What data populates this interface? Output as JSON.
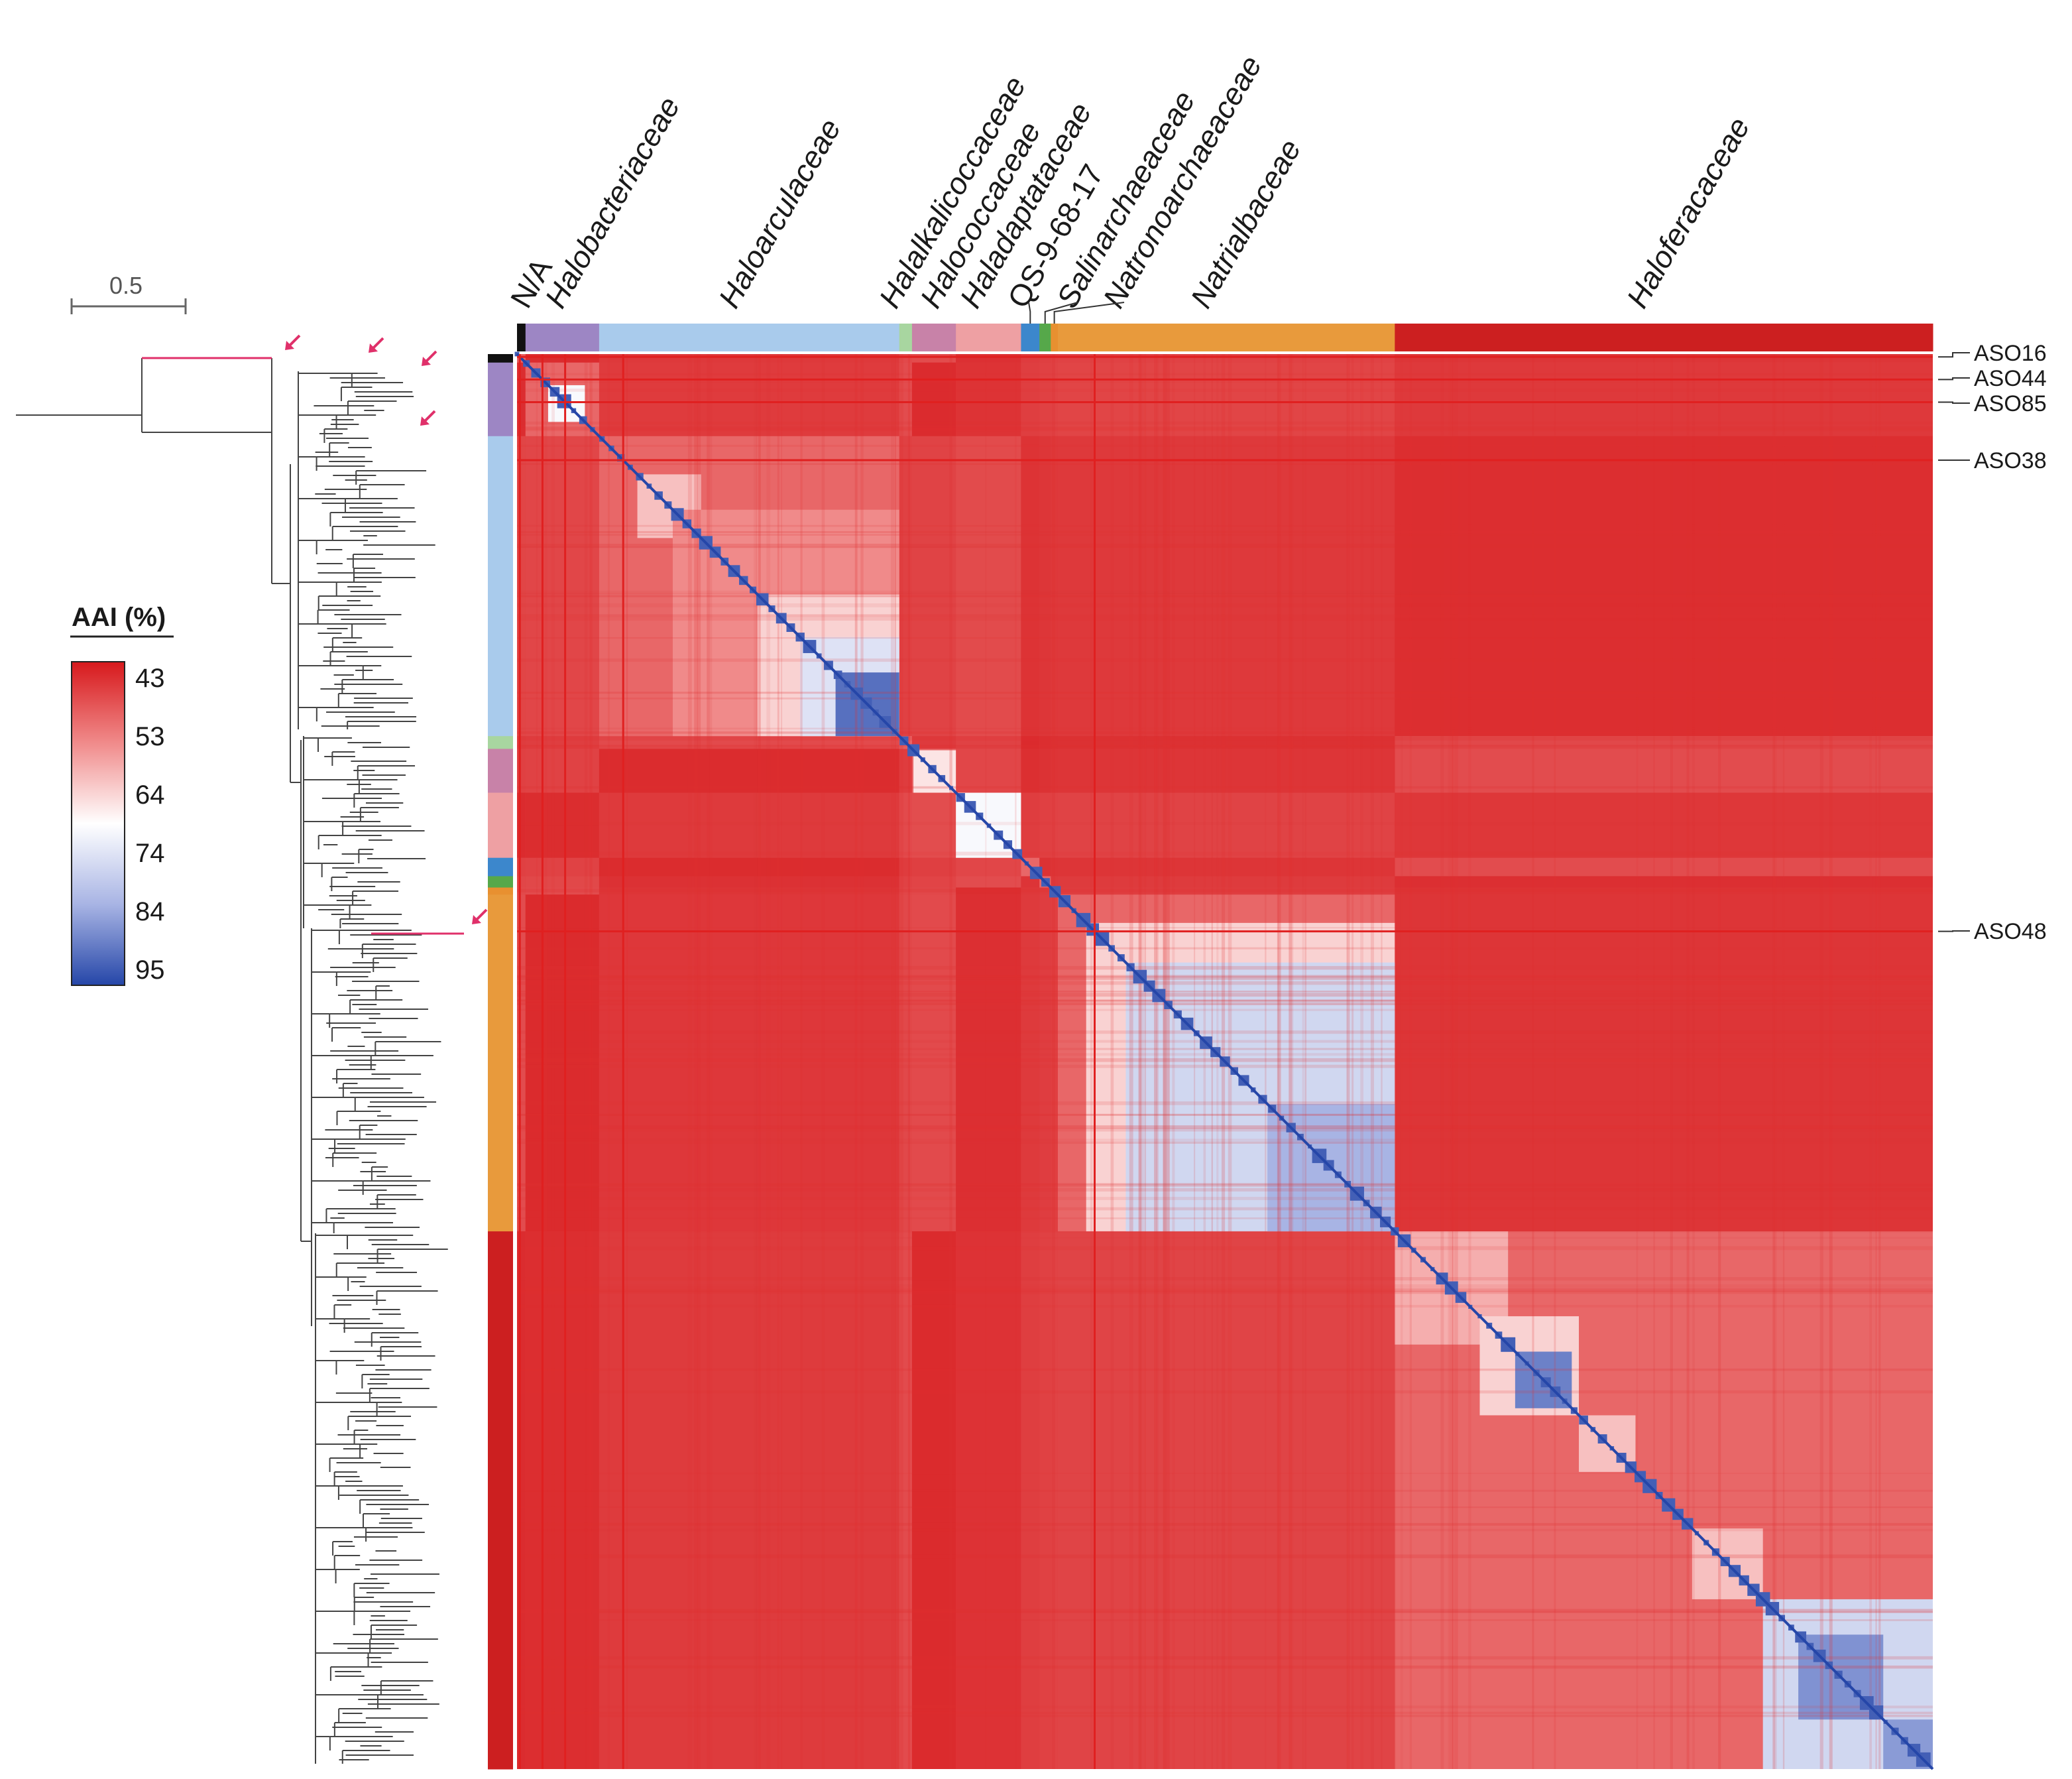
{
  "chart_data": {
    "type": "heatmap",
    "title": "",
    "families": [
      {
        "name": "N/A",
        "color": "#111111",
        "start": 0,
        "end": 0.006
      },
      {
        "name": "Halobacteriaceae",
        "color": "#9d86c4",
        "start": 0.006,
        "end": 0.058
      },
      {
        "name": "Haloarculaceae",
        "color": "#a9cbec",
        "start": 0.058,
        "end": 0.27
      },
      {
        "name": "Halalkalicoccaceae",
        "color": "#a8d6a0",
        "start": 0.27,
        "end": 0.279
      },
      {
        "name": "Halococcaceae",
        "color": "#c882a8",
        "start": 0.279,
        "end": 0.31
      },
      {
        "name": "Haladaptataceae",
        "color": "#eea0a3",
        "start": 0.31,
        "end": 0.356
      },
      {
        "name": "QS-9-68-17",
        "color": "#3c87cc",
        "start": 0.356,
        "end": 0.369
      },
      {
        "name": "Salinarchaeaceae",
        "color": "#56a84a",
        "start": 0.369,
        "end": 0.377
      },
      {
        "name": "Natronoarchaeaceae",
        "color": "#e89030",
        "start": 0.377,
        "end": 0.382
      },
      {
        "name": "Natrialbaceae",
        "color": "#e89a3c",
        "start": 0.382,
        "end": 0.62
      },
      {
        "name": "Haloferacaceae",
        "color": "#cc1f20",
        "start": 0.62,
        "end": 1.0
      }
    ],
    "highlighted_genomes": [
      {
        "name": "ASO16",
        "pos": 0.002
      },
      {
        "name": "ASO44",
        "pos": 0.018
      },
      {
        "name": "ASO85",
        "pos": 0.034
      },
      {
        "name": "ASO38",
        "pos": 0.075
      },
      {
        "name": "ASO48",
        "pos": 0.408
      }
    ],
    "colorbar": {
      "title": "AAI (%)",
      "ticks": [
        43,
        53,
        64,
        74,
        84,
        95
      ],
      "range": [
        43,
        95
      ],
      "colors": [
        "#d7191c",
        "#f08a8a",
        "#ffffff",
        "#a8b4e4",
        "#2546a8"
      ]
    },
    "tree_scale": "0.5",
    "blocks": [
      {
        "start": 0.022,
        "end": 0.048,
        "aai": 70
      },
      {
        "start": 0.085,
        "end": 0.13,
        "aai": 62
      },
      {
        "start": 0.11,
        "end": 0.27,
        "aai": 56
      },
      {
        "start": 0.17,
        "end": 0.27,
        "aai": 64
      },
      {
        "start": 0.2,
        "end": 0.27,
        "aai": 74
      },
      {
        "start": 0.225,
        "end": 0.27,
        "aai": 90
      },
      {
        "start": 0.28,
        "end": 0.31,
        "aai": 66
      },
      {
        "start": 0.31,
        "end": 0.356,
        "aai": 70
      },
      {
        "start": 0.402,
        "end": 0.62,
        "aai": 64
      },
      {
        "start": 0.43,
        "end": 0.62,
        "aai": 76
      },
      {
        "start": 0.53,
        "end": 0.62,
        "aai": 82
      },
      {
        "start": 0.62,
        "end": 0.7,
        "aai": 60
      },
      {
        "start": 0.68,
        "end": 0.75,
        "aai": 64
      },
      {
        "start": 0.705,
        "end": 0.745,
        "aai": 88
      },
      {
        "start": 0.75,
        "end": 0.79,
        "aai": 62
      },
      {
        "start": 0.83,
        "end": 0.88,
        "aai": 62
      },
      {
        "start": 0.88,
        "end": 1.0,
        "aai": 76
      },
      {
        "start": 0.905,
        "end": 0.965,
        "aai": 86
      },
      {
        "start": 0.965,
        "end": 1.0,
        "aai": 85
      }
    ]
  }
}
